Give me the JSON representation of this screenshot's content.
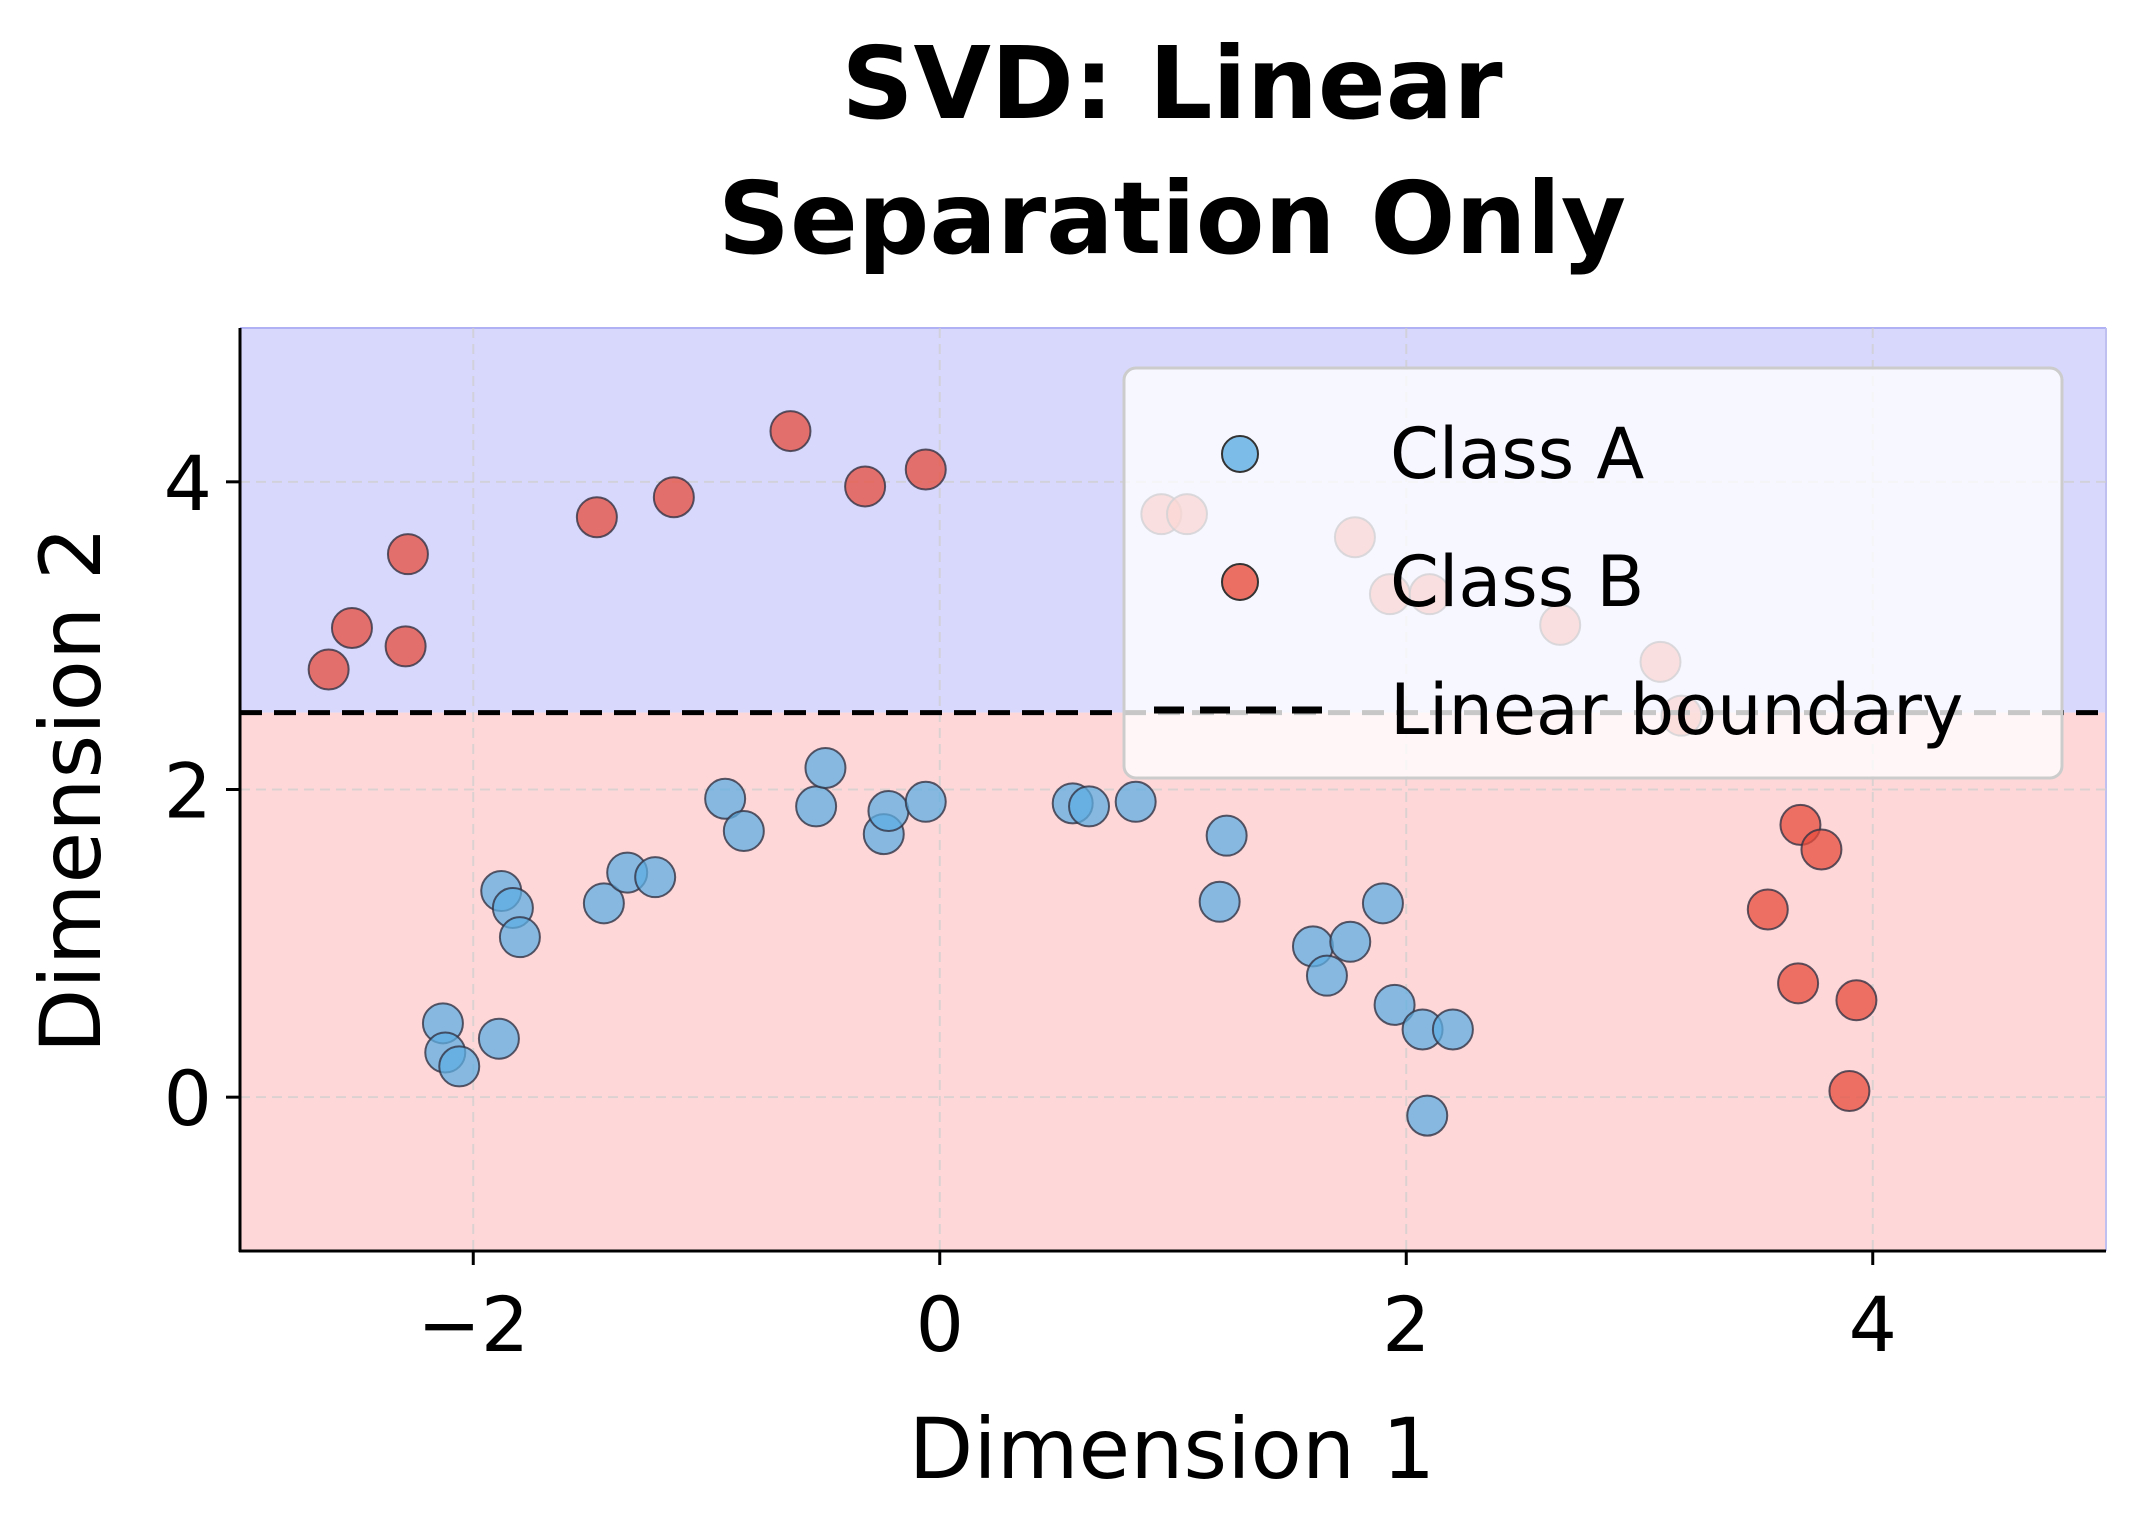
{
  "chart_data": {
    "type": "scatter",
    "title": "SVD: Linear\nSeparation Only",
    "title_lines": [
      "SVD: Linear",
      "Separation Only"
    ],
    "xlabel": "Dimension 1",
    "ylabel": "Dimension 2",
    "xlim": [
      -3,
      5
    ],
    "ylim": [
      -1,
      5
    ],
    "xticks": [
      -2,
      0,
      2,
      4
    ],
    "xtick_labels": [
      "−2",
      "0",
      "2",
      "4"
    ],
    "yticks": [
      0,
      2,
      4
    ],
    "ytick_labels": [
      "0",
      "2",
      "4"
    ],
    "grid": true,
    "legend_position": "upper right",
    "regions": [
      {
        "name": "upper",
        "y_from": 2.5,
        "y_to": 5,
        "color": "#d8d8fc"
      },
      {
        "name": "lower",
        "y_from": -1,
        "y_to": 2.5,
        "color": "#fed8d9"
      }
    ],
    "boundary": {
      "name": "Linear boundary",
      "y": 2.5,
      "style": "dashed",
      "color": "#000000"
    },
    "series": [
      {
        "name": "Class A",
        "color": "#5dade2",
        "points": [
          [
            -2.13,
            0.48
          ],
          [
            -2.12,
            0.29
          ],
          [
            -2.06,
            0.2
          ],
          [
            -1.89,
            0.38
          ],
          [
            -1.88,
            1.34
          ],
          [
            -1.83,
            1.23
          ],
          [
            -1.8,
            1.04
          ],
          [
            -1.44,
            1.26
          ],
          [
            -1.34,
            1.46
          ],
          [
            -1.22,
            1.43
          ],
          [
            -0.92,
            1.94
          ],
          [
            -0.84,
            1.73
          ],
          [
            -0.53,
            1.89
          ],
          [
            -0.49,
            2.14
          ],
          [
            -0.24,
            1.71
          ],
          [
            -0.22,
            1.86
          ],
          [
            -0.06,
            1.92
          ],
          [
            0.57,
            1.91
          ],
          [
            0.64,
            1.89
          ],
          [
            0.84,
            1.92
          ],
          [
            1.23,
            1.7
          ],
          [
            1.2,
            1.27
          ],
          [
            1.6,
            0.98
          ],
          [
            1.66,
            0.79
          ],
          [
            1.76,
            1.01
          ],
          [
            1.9,
            1.26
          ],
          [
            1.95,
            0.6
          ],
          [
            2.07,
            0.44
          ],
          [
            2.2,
            0.44
          ],
          [
            2.09,
            -0.12
          ]
        ]
      },
      {
        "name": "Class B",
        "color": "#e74c3c",
        "points": [
          [
            -2.62,
            2.78
          ],
          [
            -2.52,
            3.05
          ],
          [
            -2.29,
            2.93
          ],
          [
            -2.28,
            3.53
          ],
          [
            -1.47,
            3.77
          ],
          [
            -1.14,
            3.9
          ],
          [
            -0.64,
            4.33
          ],
          [
            -0.32,
            3.97
          ],
          [
            -0.06,
            4.08
          ],
          [
            0.95,
            3.79
          ],
          [
            1.06,
            3.79
          ],
          [
            1.78,
            3.64
          ],
          [
            1.93,
            3.27
          ],
          [
            2.1,
            3.27
          ],
          [
            2.66,
            3.07
          ],
          [
            3.09,
            2.83
          ],
          [
            3.18,
            2.48
          ],
          [
            3.55,
            1.22
          ],
          [
            3.69,
            1.77
          ],
          [
            3.78,
            1.61
          ],
          [
            3.68,
            0.74
          ],
          [
            3.93,
            0.63
          ],
          [
            3.9,
            0.04
          ]
        ]
      }
    ],
    "legend": [
      {
        "label": "Class A",
        "marker": "circle",
        "color": "#5dade2"
      },
      {
        "label": "Class B",
        "marker": "circle",
        "color": "#e74c3c"
      },
      {
        "label": "Linear boundary",
        "marker": "dashed-line",
        "color": "#000000"
      }
    ]
  }
}
